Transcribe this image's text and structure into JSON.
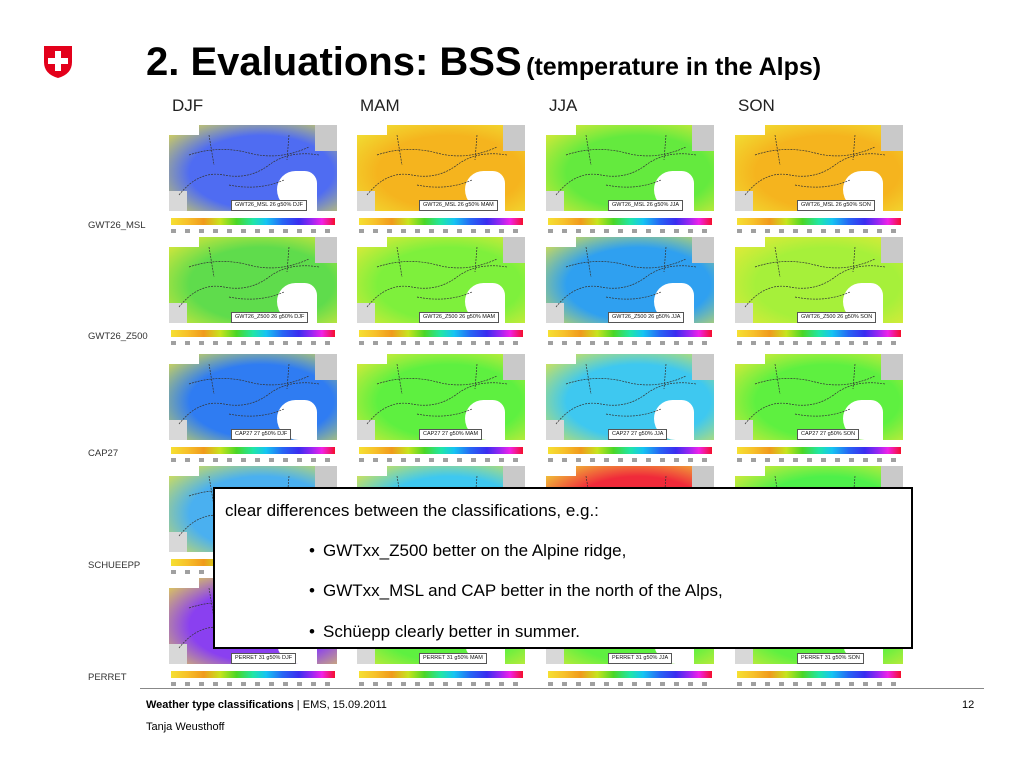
{
  "title": {
    "main": "2. Evaluations: BSS",
    "sub": "(temperature in the Alps)"
  },
  "seasons": [
    "DJF",
    "MAM",
    "JJA",
    "SON"
  ],
  "rows": [
    {
      "label": "GWT26_MSL",
      "panel_tags": [
        "GWT26_MSL 26 g50% DJF",
        "GWT26_MSL 26 g50% MAM",
        "GWT26_MSL 26 g50% JJA",
        "GWT26_MSL 26 g50% SON"
      ]
    },
    {
      "label": "GWT26_Z500",
      "panel_tags": [
        "GWT26_Z500 26 g50% DJF",
        "GWT26_Z500 26 g50% MAM",
        "GWT26_Z500 26 g50% JJA",
        "GWT26_Z500 26 g50% SON"
      ]
    },
    {
      "label": "CAP27",
      "panel_tags": [
        "CAP27 27 g50% DJF",
        "CAP27 27 g50% MAM",
        "CAP27 27 g50% JJA",
        "CAP27 27 g50% SON"
      ]
    },
    {
      "label": "SCHUEEPP",
      "panel_tags": [
        "",
        "",
        "",
        ""
      ]
    },
    {
      "label": "PERRET",
      "panel_tags": [
        "PERRET 31 g50% DJF",
        "PERRET 31 g50% MAM",
        "PERRET 31 g50% JJA",
        "PERRET 31 g50% SON"
      ]
    }
  ],
  "panel_colors": [
    [
      "#4f6cf2",
      "#f5b41e",
      "#64ea3e",
      "#f5b41e"
    ],
    [
      "#5fdc4c",
      "#7ef03c",
      "#2fa0f0",
      "#a6f03a"
    ],
    [
      "#2f7cf2",
      "#5ef040",
      "#3ec8f0",
      "#5ef040"
    ],
    [
      "#4ab0f0",
      "#3ec8f0",
      "#f02a3a",
      "#4ef04a"
    ],
    [
      "#8a40f0",
      "#5ef040",
      "#5ef040",
      "#5ef040"
    ]
  ],
  "callout": {
    "intro": "clear differences between the classifications, e.g.:",
    "bullets": [
      "GWTxx_Z500 better on the Alpine ridge,",
      "GWTxx_MSL and CAP better in the north of the Alps,",
      "Schüepp clearly better in summer."
    ]
  },
  "footer": {
    "title": "Weather type classifications",
    "separator": " | ",
    "event": "EMS, 15.09.2011",
    "page": "12",
    "author": "Tanja Weusthoff"
  },
  "colors": {
    "logo_red": "#e3001b",
    "callout_border": "#000000"
  }
}
